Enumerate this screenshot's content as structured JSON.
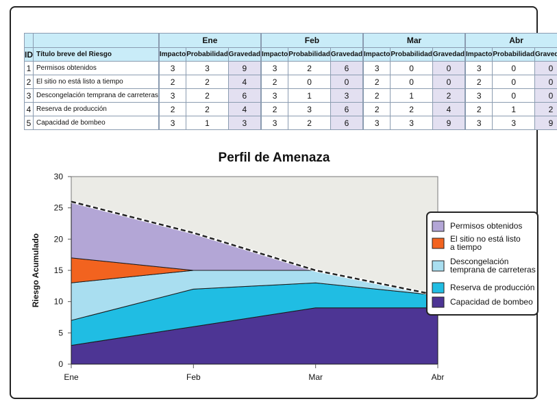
{
  "table": {
    "month_headers": [
      "Ene",
      "Feb",
      "Mar",
      "Abr"
    ],
    "id_header": "ID",
    "title_header": "Título breve del Riesgo",
    "sub_headers": [
      "Impacto",
      "Probabilidad",
      "Gravedad"
    ],
    "rows": [
      {
        "id": "1",
        "title": "Permisos obtenidos",
        "vals": [
          "3",
          "3",
          "9",
          "3",
          "2",
          "6",
          "3",
          "0",
          "0",
          "3",
          "0",
          "0"
        ]
      },
      {
        "id": "2",
        "title": "El sitio no está listo a tiempo",
        "vals": [
          "2",
          "2",
          "4",
          "2",
          "0",
          "0",
          "2",
          "0",
          "0",
          "2",
          "0",
          "0"
        ]
      },
      {
        "id": "3",
        "title": "Descongelación temprana de carreteras",
        "vals": [
          "3",
          "2",
          "6",
          "3",
          "1",
          "3",
          "2",
          "1",
          "2",
          "3",
          "0",
          "0"
        ]
      },
      {
        "id": "4",
        "title": "Reserva de producción",
        "vals": [
          "2",
          "2",
          "4",
          "2",
          "3",
          "6",
          "2",
          "2",
          "4",
          "2",
          "1",
          "2"
        ]
      },
      {
        "id": "5",
        "title": "Capacidad de bombeo",
        "vals": [
          "3",
          "1",
          "3",
          "3",
          "2",
          "6",
          "3",
          "3",
          "9",
          "3",
          "3",
          "9"
        ]
      }
    ]
  },
  "chart_data": {
    "type": "area",
    "title": "Perfil de Amenaza",
    "xlabel": "",
    "ylabel": "Riesgo Acumulado",
    "categories": [
      "Ene",
      "Feb",
      "Mar",
      "Abr"
    ],
    "ylim": [
      0,
      30
    ],
    "yticks": [
      "0",
      "5",
      "10",
      "15",
      "20",
      "25",
      "30"
    ],
    "stacked": true,
    "grid": false,
    "legend_position": "right",
    "total_line": {
      "values": [
        26,
        21,
        15,
        11
      ],
      "style": "dashed"
    },
    "series": [
      {
        "name": "Capacidad de bombeo",
        "values": [
          3,
          6,
          9,
          9
        ],
        "color": "#4d3594"
      },
      {
        "name": "Reserva de producción",
        "values": [
          4,
          6,
          4,
          2
        ],
        "color": "#20bde3"
      },
      {
        "name": "Descongelación temprana de carreteras",
        "values": [
          6,
          3,
          2,
          0
        ],
        "color": "#a9def0"
      },
      {
        "name": "El sitio no está listo a tiempo",
        "values": [
          4,
          0,
          0,
          0
        ],
        "color": "#f2631f"
      },
      {
        "name": "Permisos obtenidos",
        "values": [
          9,
          6,
          0,
          0
        ],
        "color": "#b3a6d6"
      }
    ],
    "legend_entries": [
      {
        "lines": [
          "Permisos obtenidos"
        ],
        "color": "#b3a6d6"
      },
      {
        "lines": [
          "El sitio no está listo",
          "a tiempo"
        ],
        "color": "#f2631f"
      },
      {
        "lines": [
          "Descongelación",
          "temprana de carreteras"
        ],
        "color": "#a9def0"
      },
      {
        "lines": [
          "Reserva de producción"
        ],
        "color": "#20bde3"
      },
      {
        "lines": [
          "Capacidad de bombeo"
        ],
        "color": "#4d3594"
      }
    ],
    "plot_background": "#ebebe6"
  }
}
